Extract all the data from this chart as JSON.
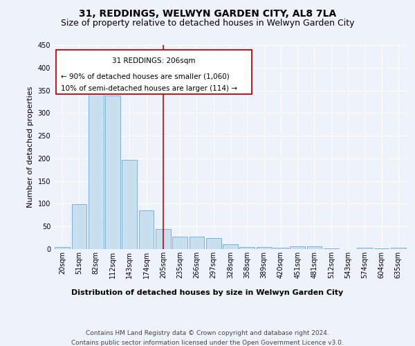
{
  "title": "31, REDDINGS, WELWYN GARDEN CITY, AL8 7LA",
  "subtitle": "Size of property relative to detached houses in Welwyn Garden City",
  "xlabel": "Distribution of detached houses by size in Welwyn Garden City",
  "ylabel": "Number of detached properties",
  "categories": [
    "20sqm",
    "51sqm",
    "82sqm",
    "112sqm",
    "143sqm",
    "174sqm",
    "205sqm",
    "235sqm",
    "266sqm",
    "297sqm",
    "328sqm",
    "358sqm",
    "389sqm",
    "420sqm",
    "451sqm",
    "481sqm",
    "512sqm",
    "543sqm",
    "574sqm",
    "604sqm",
    "635sqm"
  ],
  "values": [
    5,
    99,
    345,
    339,
    197,
    85,
    44,
    28,
    27,
    24,
    10,
    5,
    4,
    3,
    6,
    6,
    1,
    0,
    3,
    1,
    3
  ],
  "bar_color": "#c8dff0",
  "bar_edge_color": "#7fb0d8",
  "bg_color": "#eef2fa",
  "grid_color": "#ffffff",
  "property_label": "31 REDDINGS: 206sqm",
  "annotation_line1": "← 90% of detached houses are smaller (1,060)",
  "annotation_line2": "10% of semi-detached houses are larger (114) →",
  "vline_bin_index": 6,
  "vline_color": "#cc0000",
  "annotation_box_color": "#cc0000",
  "footer_line1": "Contains HM Land Registry data © Crown copyright and database right 2024.",
  "footer_line2": "Contains public sector information licensed under the Open Government Licence v3.0.",
  "ylim": [
    0,
    450
  ],
  "title_fontsize": 10,
  "subtitle_fontsize": 9,
  "axis_label_fontsize": 8,
  "tick_fontsize": 7,
  "footer_fontsize": 6.5,
  "annotation_fontsize": 7.5
}
